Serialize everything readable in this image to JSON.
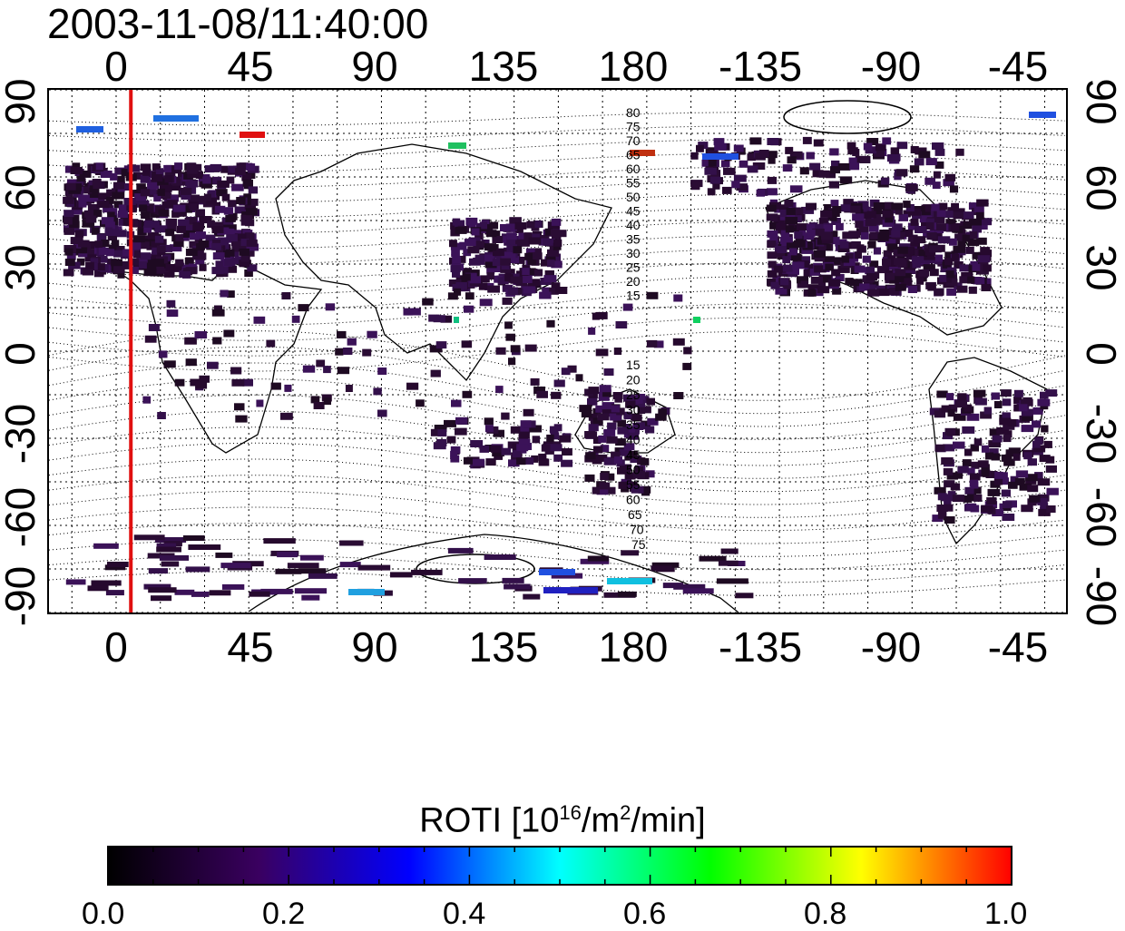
{
  "title": "2003-11-08/11:40:00",
  "x_ticks_top": [
    "0",
    "45",
    "90",
    "135",
    "180",
    "-135",
    "-90",
    "-45"
  ],
  "x_ticks_bottom": [
    "0",
    "45",
    "90",
    "135",
    "180",
    "-135",
    "-90",
    "-45"
  ],
  "y_ticks_left": [
    "90",
    "60",
    "30",
    "0",
    "-30",
    "-60",
    "-90"
  ],
  "y_ticks_right": [
    "90",
    "60",
    "30",
    "0",
    "-30",
    "-60",
    "-90"
  ],
  "colorbar": {
    "label_main": "ROTI  [10",
    "label_sup1": "16",
    "label_mid": "/m",
    "label_sup2": "2",
    "label_end": "/min]",
    "ticks": [
      "0.0",
      "0.2",
      "0.4",
      "0.6",
      "0.8",
      "1.0"
    ],
    "colormap": [
      "#000000",
      "#3a0060",
      "#0000ff",
      "#00ffff",
      "#00ff00",
      "#ffff00",
      "#ff0000"
    ]
  },
  "contour_labels_north": [
    "80",
    "75",
    "70",
    "65",
    "60",
    "55",
    "50",
    "45",
    "40",
    "35",
    "30",
    "25",
    "20",
    "15"
  ],
  "contour_labels_south": [
    "15",
    "20",
    "25",
    "30",
    "35",
    "40",
    "45",
    "50",
    "55",
    "60",
    "65",
    "70",
    "75"
  ],
  "marker_line_longitude": 5,
  "colors": {
    "marker_line": "#e01010",
    "roti_low": "#2a0a35",
    "roti_mid": "#3a0a5a"
  }
}
